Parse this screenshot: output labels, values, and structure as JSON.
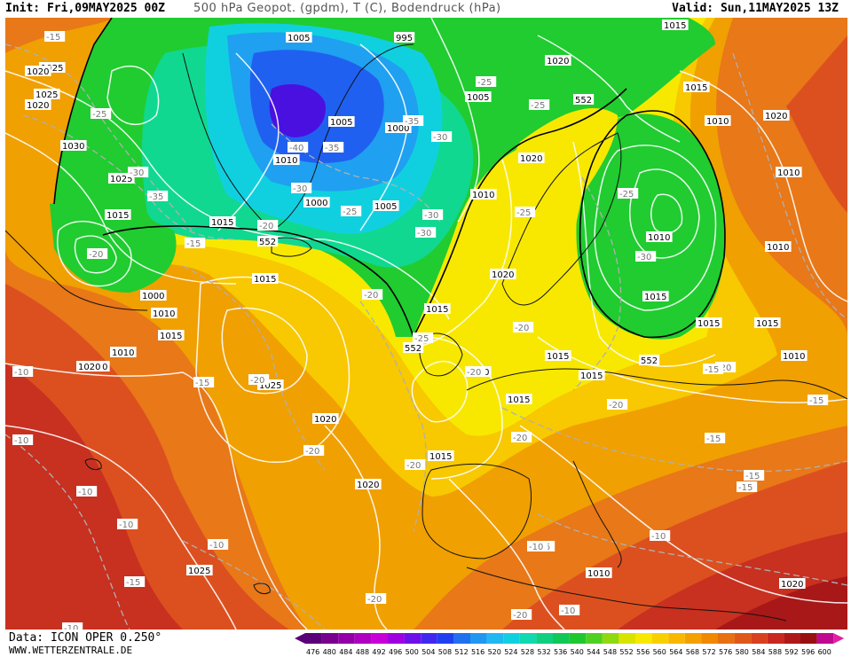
{
  "header": {
    "init": "Init: Fri,09MAY2025 00Z",
    "title": "500 hPa Geopot. (gpdm), T (C), Bodendruck (hPa)",
    "valid": "Valid: Sun,11MAY2025 13Z"
  },
  "footer": {
    "data_source": "Data: ICON OPER 0.250°",
    "website": "WWW.WETTERZENTRALE.DE"
  },
  "colorbar": {
    "values": [
      "476",
      "480",
      "484",
      "488",
      "492",
      "496",
      "500",
      "504",
      "508",
      "512",
      "516",
      "520",
      "524",
      "528",
      "532",
      "536",
      "540",
      "544",
      "548",
      "552",
      "556",
      "560",
      "564",
      "568",
      "572",
      "576",
      "580",
      "584",
      "588",
      "592",
      "596",
      "600"
    ],
    "colors": [
      "#5a0078",
      "#7a0090",
      "#9400a8",
      "#b000c0",
      "#c800d8",
      "#a000e0",
      "#6e10e8",
      "#4028f0",
      "#2040f0",
      "#2070f0",
      "#2098f0",
      "#20b8f0",
      "#10d0e0",
      "#10d8b0",
      "#10d080",
      "#10c858",
      "#20c830",
      "#50d020",
      "#90d810",
      "#d8e400",
      "#f8e800",
      "#f8d000",
      "#f8b800",
      "#f4a000",
      "#f08800",
      "#e87010",
      "#e05818",
      "#d84020",
      "#c82820",
      "#b01818",
      "#981010",
      "#c00890"
    ]
  },
  "map": {
    "colors": {
      "lowest": "#4a10e0",
      "deep_blue": "#2060f0",
      "blue": "#20a0f0",
      "cyan": "#10d0e0",
      "teal": "#10d890",
      "green": "#20cc30",
      "lime": "#70d820",
      "yellow": "#f8e800",
      "gold": "#f8c800",
      "orange": "#f0a000",
      "dark_orange": "#e87818",
      "red_orange": "#dc5020",
      "red": "#c83020",
      "dark_red": "#a81818"
    },
    "pressure_labels": [
      "1025",
      "995",
      "1020",
      "1015",
      "1025",
      "1005",
      "1020",
      "1030",
      "1005",
      "1000",
      "1005",
      "1010",
      "1025",
      "1020",
      "1015",
      "1010",
      "1020",
      "1010",
      "1015",
      "1000",
      "1010",
      "1000",
      "1005",
      "1010",
      "1015",
      "1015",
      "1010",
      "1010",
      "1010",
      "1020",
      "1020",
      "1015",
      "1015",
      "1010",
      "1015",
      "1020",
      "1025",
      "1015",
      "1020",
      "1010",
      "1010",
      "1015",
      "1015",
      "1015",
      "1015",
      "1020",
      "1015",
      "1025",
      "1010",
      "1020",
      "1015"
    ],
    "temperature_labels": [
      "-15",
      "-25",
      "-30",
      "-35",
      "-40",
      "-35",
      "-30",
      "-25",
      "-30",
      "-35",
      "-25",
      "-30",
      "-25",
      "-20",
      "-15",
      "-20",
      "-30",
      "-25",
      "-25",
      "-20",
      "-30",
      "-20",
      "-20",
      "-20",
      "-25",
      "-20",
      "-15",
      "-20",
      "-15",
      "-20",
      "-20",
      "-15",
      "-10",
      "-15",
      "-10",
      "-15",
      "-10",
      "-10",
      "-20",
      "-10",
      "-20",
      "-15",
      "-10",
      "-10",
      "-15",
      "-10",
      "-10",
      "-20",
      "-20",
      "-15"
    ],
    "height_labels": [
      "552",
      "552",
      "552",
      "552"
    ]
  }
}
